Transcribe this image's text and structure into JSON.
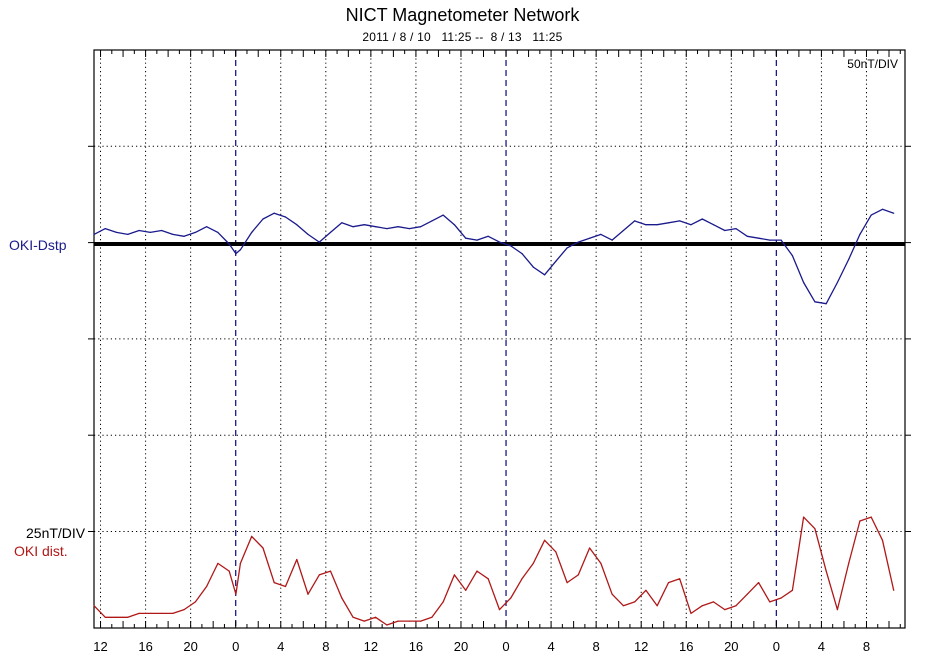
{
  "header": {
    "title": "NICT Magnetometer Network",
    "subtitle": "2011 / 8 / 10   11:25 --  8 / 13   11:25"
  },
  "labels": {
    "scale_top": "50nT/DIV",
    "series1": "OKI-Dstp",
    "scale_bottom": "25nT/DIV",
    "series2": "OKI dist."
  },
  "colors": {
    "series1": "#1a1a8c",
    "series2": "#b01818",
    "day_divider": "#1a1a8c",
    "baseline": "#000000",
    "grid": "#000000"
  },
  "chart_data": {
    "type": "line",
    "title": "NICT Magnetometer Network",
    "subtitle": "2011 / 8 / 10   11:25 --  8 / 13   11:25",
    "x_unit": "hours since 2011-08-10 11:25 (axis labeled in hour of day)",
    "xlim": [
      0,
      72
    ],
    "x_tick_labels": [
      "12",
      "16",
      "20",
      "0",
      "4",
      "8",
      "12",
      "16",
      "20",
      "0",
      "4",
      "8",
      "12",
      "16",
      "20",
      "0",
      "4",
      "8"
    ],
    "x_tick_positions": [
      0.58,
      4.58,
      8.58,
      12.58,
      16.58,
      20.58,
      24.58,
      28.58,
      32.58,
      36.58,
      40.58,
      44.58,
      48.58,
      52.58,
      56.58,
      60.58,
      64.58,
      68.58
    ],
    "day_boundaries": [
      12.58,
      36.58,
      60.58
    ],
    "grid": true,
    "series": [
      {
        "name": "OKI-Dstp",
        "scale": "50nT/DIV",
        "unit": "nT",
        "x": [
          0,
          1,
          2,
          3,
          4,
          5,
          6,
          7,
          8,
          9,
          10,
          11,
          12,
          12.6,
          13,
          14,
          15,
          16,
          17,
          18,
          19,
          20,
          21,
          22,
          23,
          24,
          25,
          26,
          27,
          28,
          29,
          30,
          31,
          32,
          33,
          34,
          35,
          36,
          37,
          38,
          39,
          40,
          41,
          42,
          43,
          44,
          45,
          46,
          47,
          48,
          49,
          50,
          51,
          52,
          53,
          54,
          55,
          56,
          57,
          58,
          59,
          60,
          61,
          62,
          63,
          64,
          65,
          66,
          67,
          68,
          69,
          70,
          71
        ],
        "values": [
          5,
          8,
          6,
          5,
          7,
          6,
          7,
          5,
          4,
          6,
          9,
          6,
          0,
          -5,
          -3,
          6,
          13,
          16,
          14,
          10,
          5,
          1,
          6,
          11,
          9,
          10,
          9,
          8,
          9,
          8,
          9,
          12,
          15,
          10,
          3,
          2,
          4,
          1,
          -1,
          -5,
          -12,
          -16,
          -9,
          -2,
          1,
          3,
          5,
          2,
          7,
          12,
          10,
          10,
          11,
          12,
          10,
          13,
          10,
          7,
          8,
          4,
          3,
          2,
          2,
          -6,
          -20,
          -30,
          -31,
          -20,
          -8,
          5,
          15,
          18,
          16
        ]
      },
      {
        "name": "OKI dist.",
        "scale": "25nT/DIV",
        "unit": "nT",
        "x": [
          0,
          1,
          2,
          3,
          4,
          5,
          6,
          7,
          8,
          9,
          10,
          11,
          12,
          12.6,
          13,
          14,
          15,
          16,
          17,
          18,
          19,
          20,
          21,
          22,
          23,
          24,
          25,
          26,
          27,
          28,
          29,
          30,
          31,
          32,
          33,
          34,
          35,
          36,
          37,
          38,
          39,
          40,
          41,
          42,
          43,
          44,
          45,
          46,
          47,
          48,
          49,
          50,
          51,
          52,
          53,
          54,
          55,
          56,
          57,
          58,
          59,
          60,
          61,
          62,
          63,
          64,
          65,
          66,
          67,
          68,
          69,
          70,
          71
        ],
        "values": [
          5,
          2,
          2,
          2,
          3,
          3,
          3,
          3,
          4,
          6,
          10,
          16,
          14,
          8,
          16,
          23,
          20,
          11,
          10,
          17,
          8,
          13,
          14,
          7,
          2,
          1,
          2,
          0,
          1,
          1,
          1,
          2,
          6,
          13,
          9,
          14,
          12,
          4,
          7,
          12,
          16,
          22,
          19,
          11,
          13,
          20,
          16,
          8,
          5,
          6,
          9,
          5,
          11,
          12,
          3,
          5,
          6,
          4,
          5,
          8,
          11,
          6,
          7,
          9,
          28,
          25,
          14,
          4,
          16,
          27,
          28,
          22,
          9
        ]
      }
    ]
  }
}
